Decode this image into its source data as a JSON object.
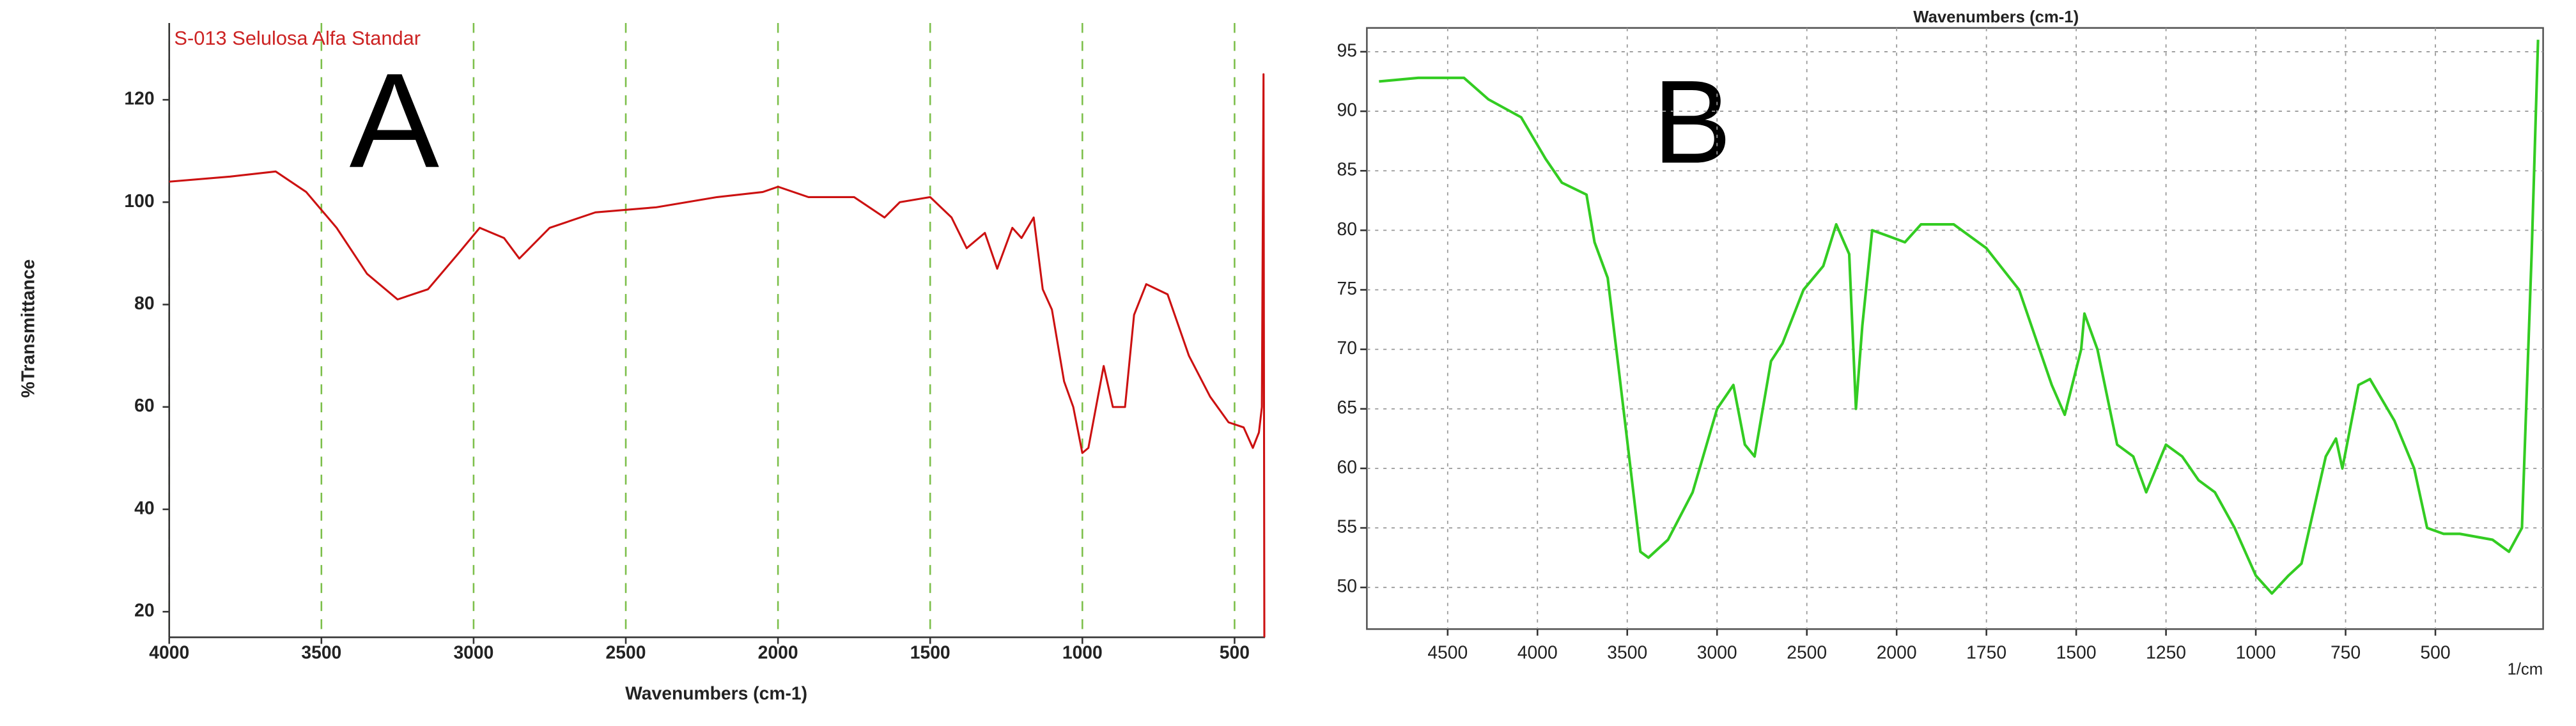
{
  "chart_data": [
    {
      "type": "line",
      "title": "S-013 Selulosa Alfa Standar",
      "annotation": "A",
      "x_label": "Wavenumbers (cm-1)",
      "y_label": "%Transmittance",
      "xlim": [
        4000,
        400
      ],
      "ylim": [
        15,
        135
      ],
      "xticks": [
        4000,
        3500,
        3000,
        2500,
        2000,
        1500,
        1000,
        500
      ],
      "yticks": [
        20,
        40,
        60,
        80,
        100,
        120
      ],
      "grid": "x",
      "grid_color": "#7cbf4a",
      "color": "#cc1111",
      "x": [
        4000,
        3800,
        3650,
        3550,
        3450,
        3350,
        3250,
        3150,
        3050,
        2980,
        2900,
        2850,
        2750,
        2600,
        2400,
        2200,
        2050,
        2000,
        1900,
        1750,
        1650,
        1600,
        1500,
        1430,
        1380,
        1320,
        1280,
        1230,
        1200,
        1160,
        1130,
        1100,
        1060,
        1030,
        1000,
        980,
        930,
        900,
        860,
        830,
        790,
        720,
        650,
        580,
        520,
        470,
        440,
        420,
        410,
        405,
        402
      ],
      "values": [
        104,
        105,
        106,
        102,
        95,
        86,
        81,
        83,
        90,
        95,
        93,
        89,
        95,
        98,
        99,
        101,
        102,
        103,
        101,
        101,
        97,
        100,
        101,
        97,
        91,
        94,
        87,
        95,
        93,
        97,
        83,
        79,
        65,
        60,
        51,
        52,
        68,
        60,
        60,
        78,
        84,
        82,
        70,
        62,
        57,
        56,
        52,
        55,
        60,
        125,
        15
      ]
    },
    {
      "type": "line",
      "title": "Wavenumbers (cm-1)",
      "annotation": "B",
      "x_unit": "1/cm",
      "xlim": [
        4950,
        200
      ],
      "ylim": [
        46.5,
        97
      ],
      "xbreak": 2000,
      "xbreak_factor": 2,
      "xticks": [
        4500,
        4000,
        3500,
        3000,
        2500,
        2000,
        1750,
        1500,
        1250,
        1000,
        750,
        500
      ],
      "yticks": [
        50,
        55,
        60,
        65,
        70,
        75,
        80,
        85,
        90,
        95
      ],
      "grid": "both",
      "grid_color": "#999999",
      "color": "#33cc22",
      "x": [
        4882,
        4664,
        4409,
        4273,
        4091,
        3955,
        3864,
        3727,
        3682,
        3609,
        3545,
        3482,
        3427,
        3382,
        3273,
        3136,
        3000,
        2909,
        2845,
        2791,
        2700,
        2636,
        2518,
        2409,
        2336,
        2264,
        2227,
        2191,
        2136,
        2045,
        1977,
        1932,
        1841,
        1750,
        1659,
        1568,
        1532,
        1486,
        1477,
        1441,
        1386,
        1341,
        1305,
        1250,
        1205,
        1159,
        1114,
        1059,
        1000,
        955,
        909,
        873,
        805,
        777,
        759,
        714,
        682,
        614,
        559,
        523,
        477,
        432,
        341,
        295,
        259,
        232,
        214
      ],
      "values": [
        92.5,
        92.8,
        92.8,
        91,
        89.5,
        86,
        84,
        83,
        79,
        76,
        68,
        60,
        53,
        52.5,
        54,
        58,
        65,
        67,
        62,
        61,
        69,
        70.5,
        75,
        77,
        80.5,
        78,
        65,
        72,
        80,
        79.5,
        79,
        80.5,
        80.5,
        78.5,
        75,
        67,
        64.5,
        70,
        73,
        70,
        62,
        61,
        58,
        62,
        61,
        59,
        58,
        55,
        51,
        49.5,
        51,
        52,
        61,
        62.5,
        60,
        67,
        67.5,
        64,
        60,
        55,
        54.5,
        54.5,
        54,
        53,
        55,
        78,
        96
      ]
    }
  ]
}
